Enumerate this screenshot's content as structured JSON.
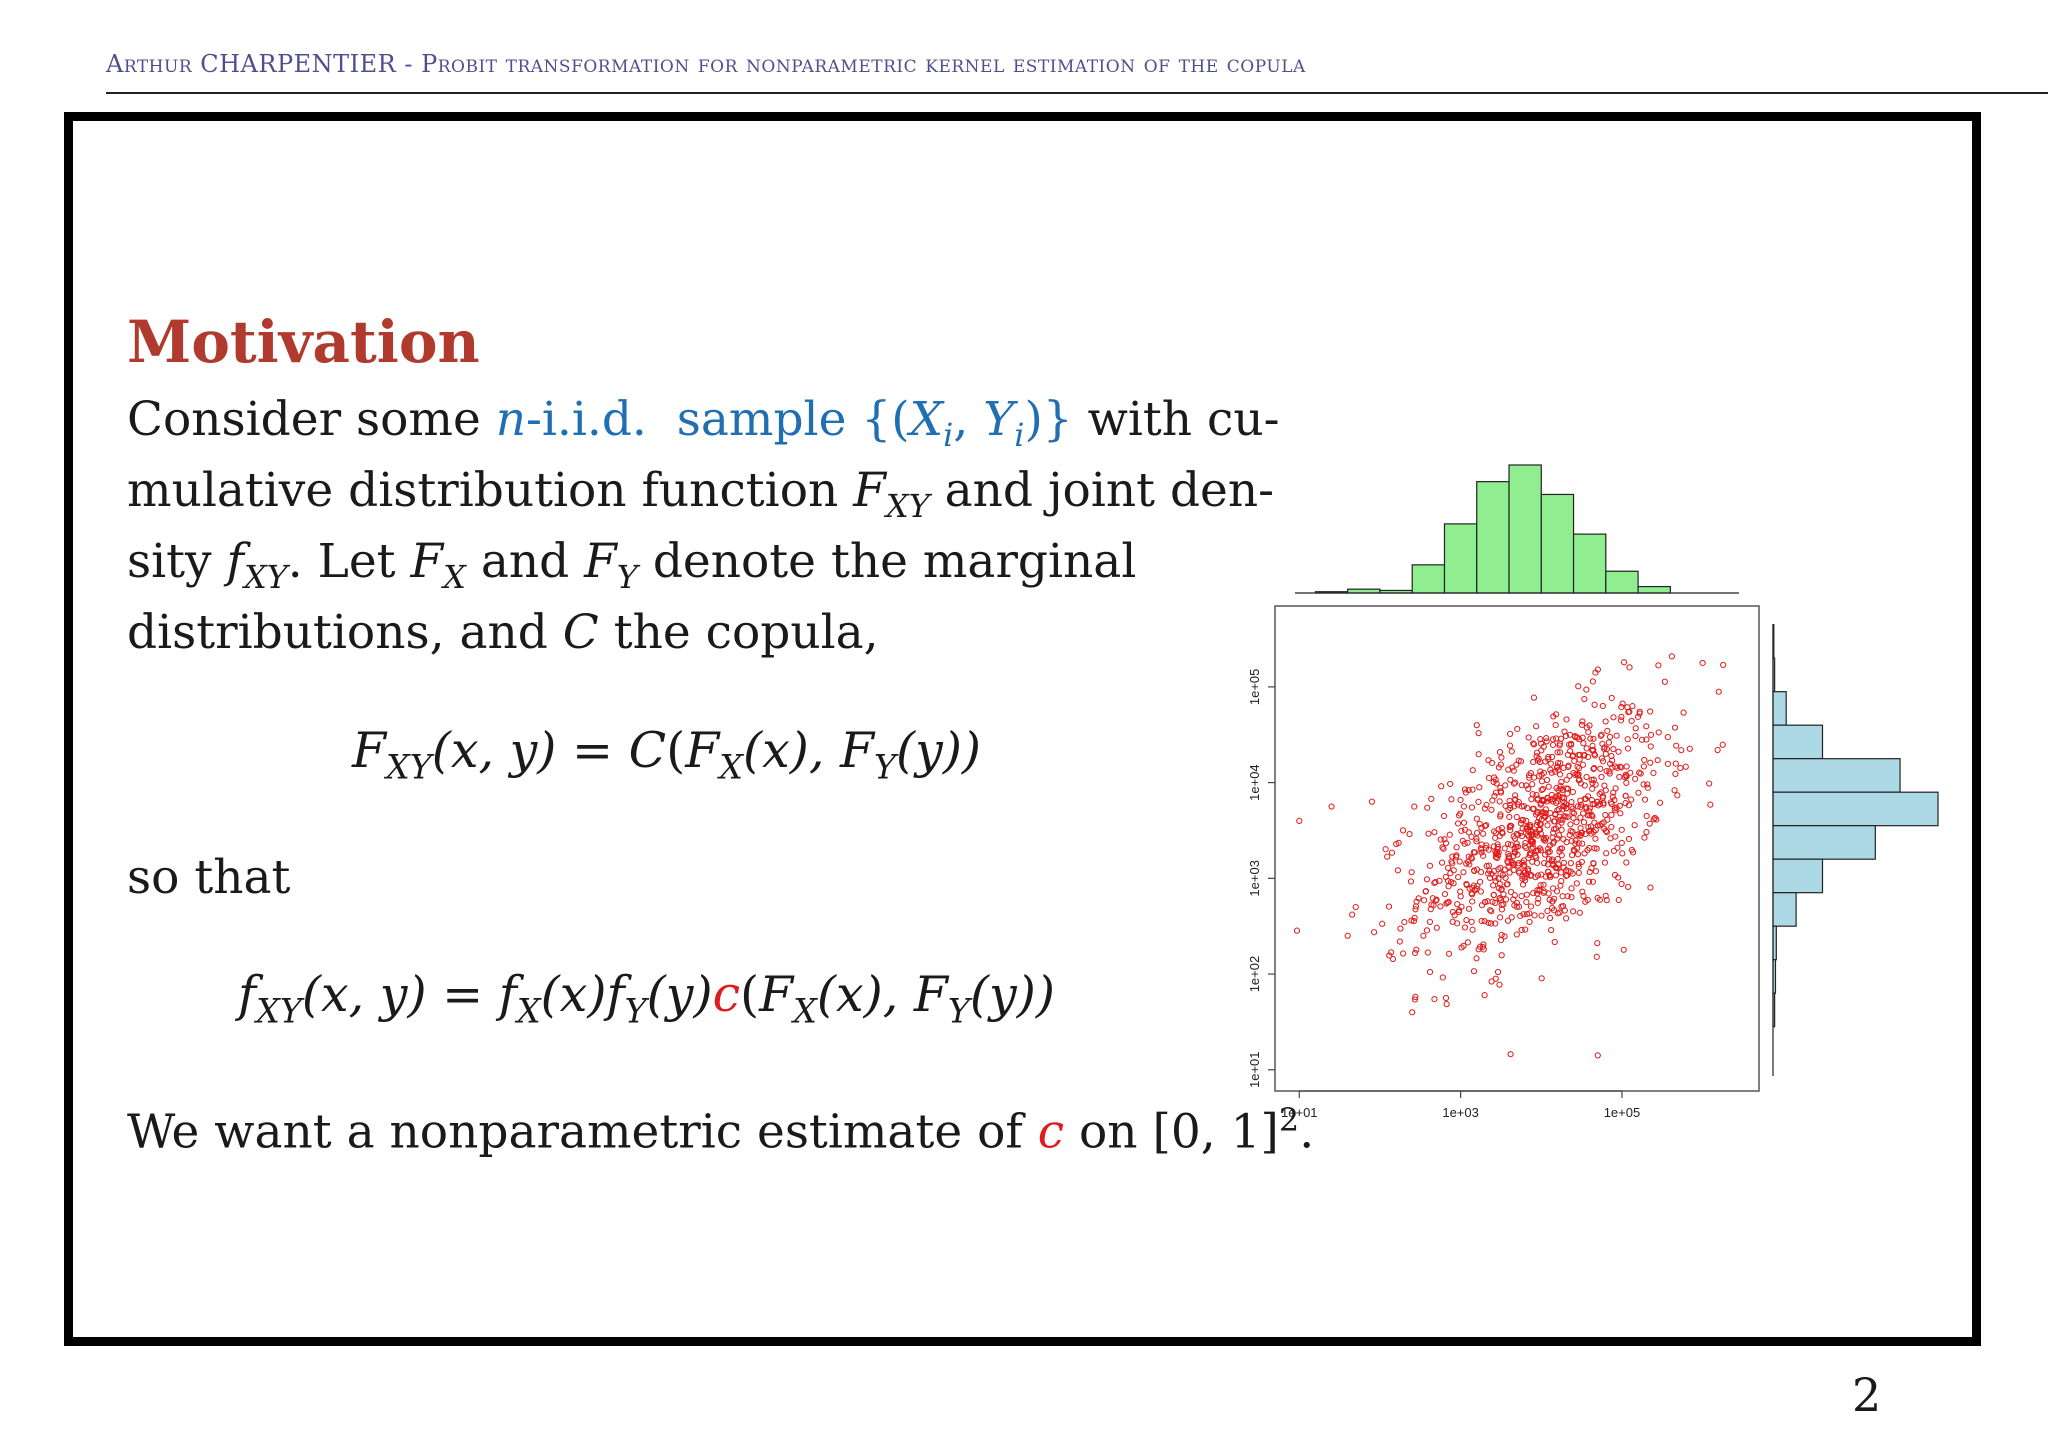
{
  "header": {
    "author": "Arthur CHARPENTIER",
    "separator": " - ",
    "title": "Probit transformation for nonparametric kernel estimation of the copula"
  },
  "slide": {
    "heading": "Motivation",
    "line1": {
      "a": "Consider some ",
      "n": "n",
      "iid": "-i.i.d.",
      "sample": "sample",
      "set_open": "{(",
      "X": "X",
      "i1": "i",
      "comma": ", ",
      "Y": "Y",
      "i2": "i",
      "set_close": ")}",
      "b": " with cu-"
    },
    "line2": {
      "a": "mulative distribution function ",
      "F": "F",
      "XY": "XY",
      "b": " and joint den-"
    },
    "line3": {
      "a": "sity ",
      "f": "f",
      "XY": "XY",
      "b": ".  Let ",
      "F1": "F",
      "X": "X",
      "c": " and ",
      "F2": "F",
      "Y": "Y",
      "d": " denote the marginal"
    },
    "line4": {
      "a": "distributions, and ",
      "C": "C",
      "b": " the copula,"
    },
    "eq1": {
      "F": "F",
      "XY": "XY",
      "args": "(x, y)",
      "eq": " = ",
      "C": "C",
      "open": "(",
      "FX": "F",
      "X": "X",
      "x": "(x), ",
      "FY": "F",
      "Y": "Y",
      "y": "(y))"
    },
    "so_that": "so that",
    "eq2": {
      "f": "f",
      "XY": "XY",
      "args": "(x, y)",
      "eq": " = ",
      "fx": "f",
      "X": "X",
      "x": "(x)",
      "fy": "f",
      "Y": "Y",
      "y": "(y)",
      "c": "c",
      "open": "(",
      "FX": "F",
      "X2": "X",
      "x2": "(x), ",
      "FY": "F",
      "Y2": "Y",
      "y2": "(y))"
    },
    "last": {
      "a": "We want a nonparametric estimate of ",
      "c": "c",
      "b": " on [0, 1]",
      "sup": "2",
      "end": "."
    }
  },
  "colors": {
    "heading": "#b03a2e",
    "highlight_blue": "#1f6fb2",
    "highlight_red": "#e01b1b",
    "points": "#e01b1b",
    "hist_top": "#90ee90",
    "hist_right": "#add8e6"
  },
  "page_number": "2",
  "chart_data": {
    "type": "scatter",
    "x_scale": "log10",
    "y_scale": "log10",
    "xlim": [
      5,
      5000000
    ],
    "ylim": [
      6,
      700000
    ],
    "x_ticks": [
      "1e+01",
      "1e+03",
      "1e+05"
    ],
    "y_ticks": [
      "1e+01",
      "1e+02",
      "1e+03",
      "1e+04",
      "1e+05"
    ],
    "marker": "open-circle",
    "point_color": "#e01b1b",
    "n_points_approx": 1000,
    "center_log10": [
      4.0,
      3.5
    ],
    "spread_log10": [
      0.75,
      0.65
    ],
    "correlation_approx": 0.5,
    "outliers_log10": [
      [
        1.0,
        3.6
      ],
      [
        1.4,
        3.75
      ],
      [
        1.9,
        3.8
      ],
      [
        1.7,
        2.7
      ],
      [
        1.6,
        2.4
      ],
      [
        2.4,
        1.6
      ],
      [
        3.2,
        4.6
      ],
      [
        6.2,
        4.95
      ],
      [
        6.0,
        5.25
      ],
      [
        4.7,
        1.15
      ]
    ],
    "top_histogram": {
      "variable": "log10(X)",
      "bin_width": 0.4,
      "bin_start": 1.2,
      "counts": [
        1,
        3,
        2,
        22,
        54,
        87,
        100,
        77,
        46,
        17,
        5
      ]
    },
    "right_histogram": {
      "variable": "log10(Y)",
      "bin_width": 0.35,
      "bin_start_from_top": 5.65,
      "counts_top_to_bottom": [
        0.5,
        1,
        8,
        30,
        77,
        100,
        62,
        30,
        14,
        2,
        1.5,
        1
      ]
    }
  }
}
